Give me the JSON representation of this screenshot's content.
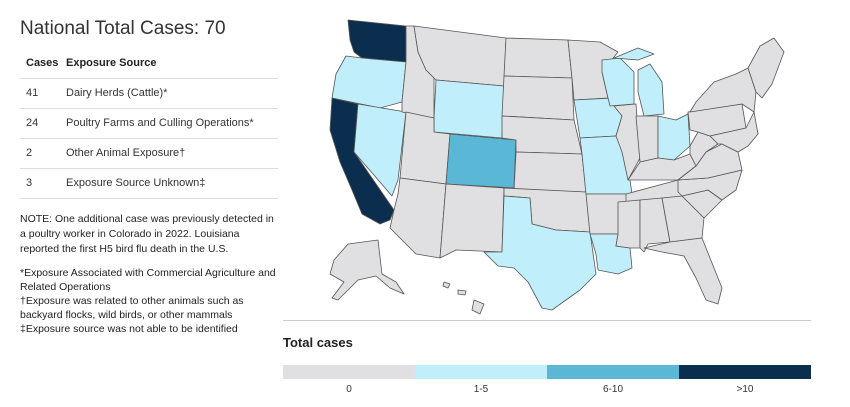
{
  "title": "National Total Cases: 70",
  "table": {
    "headers": [
      "Cases",
      "Exposure Source"
    ],
    "rows": [
      {
        "cases": "41",
        "source": "Dairy Herds (Cattle)*"
      },
      {
        "cases": "24",
        "source": "Poultry Farms and Culling Operations*"
      },
      {
        "cases": "2",
        "source": "Other Animal Exposure†"
      },
      {
        "cases": "3",
        "source": "Exposure Source Unknown‡"
      }
    ]
  },
  "note": "NOTE: One additional case was previously detected in a poultry worker in Colorado in 2022. Louisiana reported the first H5 bird flu death in the U.S.",
  "footnotes": [
    "*Exposure Associated with Commercial Agriculture and Related Operations",
    "†Exposure was related to other animals such as backyard flocks, wild birds, or other mammals",
    "‡Exposure source was not able to be identified"
  ],
  "legend": {
    "title": "Total cases",
    "bins": [
      {
        "label": "0",
        "color": "#e0e0e2"
      },
      {
        "label": "1-5",
        "color": "#c0eefa"
      },
      {
        "label": "6-10",
        "color": "#5ab8d6"
      },
      {
        "label": ">10",
        "color": "#0c2e4e"
      }
    ]
  },
  "states": [
    {
      "code": "WA",
      "bin": 3
    },
    {
      "code": "OR",
      "bin": 1
    },
    {
      "code": "CA",
      "bin": 3
    },
    {
      "code": "ID",
      "bin": 0
    },
    {
      "code": "NV",
      "bin": 1
    },
    {
      "code": "MT",
      "bin": 0
    },
    {
      "code": "WY",
      "bin": 1
    },
    {
      "code": "UT",
      "bin": 0
    },
    {
      "code": "AZ",
      "bin": 0
    },
    {
      "code": "CO",
      "bin": 2
    },
    {
      "code": "NM",
      "bin": 0
    },
    {
      "code": "ND",
      "bin": 0
    },
    {
      "code": "SD",
      "bin": 0
    },
    {
      "code": "NE",
      "bin": 0
    },
    {
      "code": "KS",
      "bin": 0
    },
    {
      "code": "OK",
      "bin": 0
    },
    {
      "code": "TX",
      "bin": 1
    },
    {
      "code": "MN",
      "bin": 0
    },
    {
      "code": "IA",
      "bin": 1
    },
    {
      "code": "MO",
      "bin": 1
    },
    {
      "code": "AR",
      "bin": 0
    },
    {
      "code": "LA",
      "bin": 1
    },
    {
      "code": "WI",
      "bin": 1
    },
    {
      "code": "IL",
      "bin": 0
    },
    {
      "code": "MI",
      "bin": 1
    },
    {
      "code": "IN",
      "bin": 0
    },
    {
      "code": "OH",
      "bin": 1
    },
    {
      "code": "KY",
      "bin": 0
    },
    {
      "code": "TN",
      "bin": 0
    },
    {
      "code": "MS",
      "bin": 0
    },
    {
      "code": "AL",
      "bin": 0
    },
    {
      "code": "GA",
      "bin": 0
    },
    {
      "code": "FL",
      "bin": 0
    },
    {
      "code": "SC",
      "bin": 0
    },
    {
      "code": "NC",
      "bin": 0
    },
    {
      "code": "VA",
      "bin": 0
    },
    {
      "code": "WV",
      "bin": 0
    },
    {
      "code": "PA",
      "bin": 0
    },
    {
      "code": "NY",
      "bin": 0
    },
    {
      "code": "NE_STATES",
      "bin": 0
    },
    {
      "code": "MID_ATLANTIC",
      "bin": 0
    },
    {
      "code": "AK",
      "bin": 0
    },
    {
      "code": "HI",
      "bin": 0
    }
  ]
}
